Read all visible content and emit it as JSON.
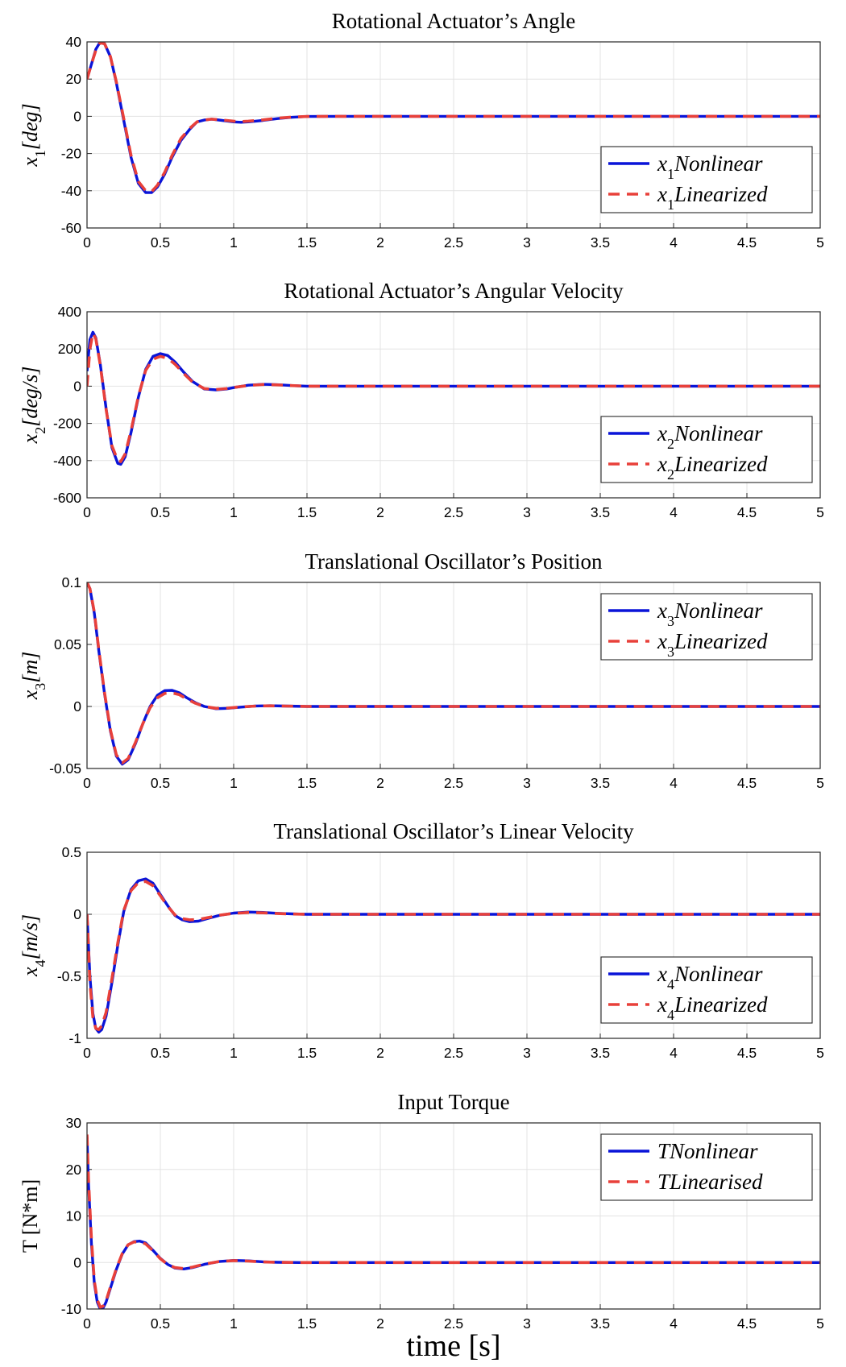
{
  "figure": {
    "xlabel": "time [s]",
    "line_colors": {
      "nonlinear": "#0a14d8",
      "linearized": "#e8403a"
    },
    "background": "#ffffff"
  },
  "chart_data": [
    {
      "type": "line",
      "title": "Rotational Actuator’s Angle",
      "ylabel": {
        "var": "x",
        "sub": "1",
        "unit": "[deg]"
      },
      "xlim": [
        0,
        5
      ],
      "ylim": [
        -60,
        40
      ],
      "xticks": [
        0,
        0.5,
        1,
        1.5,
        2,
        2.5,
        3,
        3.5,
        4,
        4.5,
        5
      ],
      "xtick_labels": [
        "0",
        "0.5",
        "1",
        "1.5",
        "2",
        "2.5",
        "3",
        "3.5",
        "4",
        "4.5",
        "5"
      ],
      "yticks": [
        -60,
        -40,
        -20,
        0,
        20,
        40
      ],
      "ytick_labels": [
        "-60",
        "-40",
        "-20",
        "0",
        "20",
        "40"
      ],
      "grid": true,
      "legend_position": "bottom-right",
      "series": [
        {
          "name": "x1Nonlinear",
          "label_main": "x",
          "label_sub": "1",
          "label_rest": "Nonlinear",
          "style": "solid",
          "x": [
            0,
            0.03,
            0.06,
            0.09,
            0.12,
            0.16,
            0.2,
            0.25,
            0.3,
            0.35,
            0.4,
            0.44,
            0.48,
            0.53,
            0.58,
            0.64,
            0.7,
            0.75,
            0.8,
            0.85,
            0.9,
            0.95,
            1.0,
            1.05,
            1.1,
            1.2,
            1.3,
            1.4,
            1.5,
            1.7,
            2.0,
            5.0
          ],
          "y": [
            20,
            28,
            36,
            40,
            39,
            32,
            18,
            -2,
            -22,
            -36,
            -41,
            -41,
            -38,
            -31,
            -22,
            -13,
            -7,
            -3,
            -2,
            -1.5,
            -2,
            -2.5,
            -3,
            -3.2,
            -3,
            -2.2,
            -1.2,
            -0.5,
            -0.1,
            0,
            0,
            0
          ]
        },
        {
          "name": "x1Linearized",
          "label_main": "x",
          "label_sub": "1",
          "label_rest": "Linearized",
          "style": "dashed",
          "x": [
            0,
            0.03,
            0.06,
            0.09,
            0.12,
            0.16,
            0.2,
            0.25,
            0.3,
            0.35,
            0.4,
            0.44,
            0.48,
            0.53,
            0.58,
            0.64,
            0.7,
            0.75,
            0.8,
            0.85,
            0.9,
            0.95,
            1.0,
            1.05,
            1.1,
            1.2,
            1.3,
            1.4,
            1.5,
            1.7,
            2.0,
            5.0
          ],
          "y": [
            20,
            28,
            35.5,
            39.5,
            39,
            32,
            18.5,
            -1,
            -21,
            -35,
            -40,
            -40.5,
            -37,
            -30,
            -21,
            -12,
            -6.5,
            -3,
            -2,
            -1.5,
            -1.8,
            -2.2,
            -2.6,
            -2.8,
            -2.6,
            -1.9,
            -1,
            -0.4,
            -0.1,
            0,
            0,
            0
          ]
        }
      ]
    },
    {
      "type": "line",
      "title": "Rotational Actuator’s Angular Velocity",
      "ylabel": {
        "var": "x",
        "sub": "2",
        "unit": "[deg/s]"
      },
      "xlim": [
        0,
        5
      ],
      "ylim": [
        -600,
        400
      ],
      "xticks": [
        0,
        0.5,
        1,
        1.5,
        2,
        2.5,
        3,
        3.5,
        4,
        4.5,
        5
      ],
      "xtick_labels": [
        "0",
        "0.5",
        "1",
        "1.5",
        "2",
        "2.5",
        "3",
        "3.5",
        "4",
        "4.5",
        "5"
      ],
      "yticks": [
        -600,
        -400,
        -200,
        0,
        200,
        400
      ],
      "ytick_labels": [
        "-600",
        "-400",
        "-200",
        "0",
        "200",
        "400"
      ],
      "grid": true,
      "legend_position": "bottom-right",
      "series": [
        {
          "name": "x2Nonlinear",
          "label_main": "x",
          "label_sub": "2",
          "label_rest": "Nonlinear",
          "style": "solid",
          "x": [
            0,
            0.02,
            0.04,
            0.06,
            0.09,
            0.13,
            0.17,
            0.21,
            0.23,
            0.26,
            0.3,
            0.35,
            0.4,
            0.45,
            0.5,
            0.55,
            0.6,
            0.66,
            0.72,
            0.8,
            0.88,
            0.95,
            1.0,
            1.1,
            1.2,
            1.3,
            1.4,
            1.5,
            1.7,
            5.0
          ],
          "y": [
            80,
            250,
            290,
            260,
            120,
            -120,
            -330,
            -415,
            -420,
            -380,
            -250,
            -60,
            90,
            160,
            175,
            165,
            130,
            75,
            25,
            -15,
            -20,
            -15,
            -8,
            5,
            10,
            8,
            3,
            0,
            0,
            0
          ]
        },
        {
          "name": "x2Linearized",
          "label_main": "x",
          "label_sub": "2",
          "label_rest": "Linearized",
          "style": "dashed",
          "x": [
            0,
            0.02,
            0.04,
            0.06,
            0.09,
            0.13,
            0.17,
            0.21,
            0.23,
            0.26,
            0.3,
            0.35,
            0.4,
            0.45,
            0.5,
            0.55,
            0.6,
            0.66,
            0.72,
            0.8,
            0.88,
            0.95,
            1.0,
            1.1,
            1.2,
            1.3,
            1.4,
            1.5,
            1.7,
            5.0
          ],
          "y": [
            0,
            200,
            285,
            255,
            115,
            -125,
            -320,
            -400,
            -405,
            -365,
            -240,
            -55,
            85,
            145,
            160,
            150,
            118,
            68,
            22,
            -13,
            -18,
            -13,
            -7,
            4,
            9,
            7,
            3,
            0,
            0,
            0
          ]
        }
      ]
    },
    {
      "type": "line",
      "title": "Translational Oscillator’s Position",
      "ylabel": {
        "var": "x",
        "sub": "3",
        "unit": "[m]"
      },
      "xlim": [
        0,
        5
      ],
      "ylim": [
        -0.05,
        0.1
      ],
      "xticks": [
        0,
        0.5,
        1,
        1.5,
        2,
        2.5,
        3,
        3.5,
        4,
        4.5,
        5
      ],
      "xtick_labels": [
        "0",
        "0.5",
        "1",
        "1.5",
        "2",
        "2.5",
        "3",
        "3.5",
        "4",
        "4.5",
        "5"
      ],
      "yticks": [
        -0.05,
        0,
        0.05,
        0.1
      ],
      "ytick_labels": [
        "-0.05",
        "0",
        "0.05",
        "0.1"
      ],
      "grid": true,
      "legend_position": "top-right",
      "series": [
        {
          "name": "x3Nonlinear",
          "label_main": "x",
          "label_sub": "3",
          "label_rest": "Nonlinear",
          "style": "solid",
          "x": [
            0,
            0.02,
            0.05,
            0.08,
            0.12,
            0.16,
            0.2,
            0.24,
            0.28,
            0.33,
            0.38,
            0.43,
            0.48,
            0.53,
            0.58,
            0.63,
            0.68,
            0.74,
            0.8,
            0.88,
            0.96,
            1.05,
            1.15,
            1.25,
            1.35,
            1.5,
            1.7,
            5.0
          ],
          "y": [
            0.1,
            0.095,
            0.075,
            0.045,
            0.01,
            -0.02,
            -0.04,
            -0.0465,
            -0.043,
            -0.03,
            -0.014,
            0.0,
            0.009,
            0.0128,
            0.013,
            0.011,
            0.007,
            0.003,
            0.0,
            -0.0018,
            -0.0015,
            -0.0005,
            0.0004,
            0.0006,
            0.0003,
            0.0,
            0.0,
            0.0
          ]
        },
        {
          "name": "x3Linearized",
          "label_main": "x",
          "label_sub": "3",
          "label_rest": "Linearized",
          "style": "dashed",
          "x": [
            0,
            0.02,
            0.05,
            0.08,
            0.12,
            0.16,
            0.2,
            0.24,
            0.28,
            0.33,
            0.38,
            0.43,
            0.48,
            0.53,
            0.58,
            0.63,
            0.68,
            0.74,
            0.8,
            0.88,
            0.96,
            1.05,
            1.15,
            1.25,
            1.35,
            1.5,
            1.7,
            5.0
          ],
          "y": [
            0.1,
            0.095,
            0.076,
            0.046,
            0.011,
            -0.019,
            -0.039,
            -0.0455,
            -0.042,
            -0.029,
            -0.014,
            -0.001,
            0.007,
            0.0105,
            0.011,
            0.0095,
            0.006,
            0.0025,
            0.0,
            -0.0015,
            -0.0013,
            -0.0004,
            0.0003,
            0.0005,
            0.0003,
            0.0,
            0.0,
            0.0
          ]
        }
      ]
    },
    {
      "type": "line",
      "title": "Translational Oscillator’s Linear Velocity",
      "ylabel": {
        "var": "x",
        "sub": "4",
        "unit": "[m/s]"
      },
      "xlim": [
        0,
        5
      ],
      "ylim": [
        -1,
        0.5
      ],
      "xticks": [
        0,
        0.5,
        1,
        1.5,
        2,
        2.5,
        3,
        3.5,
        4,
        4.5,
        5
      ],
      "xtick_labels": [
        "0",
        "0.5",
        "1",
        "1.5",
        "2",
        "2.5",
        "3",
        "3.5",
        "4",
        "4.5",
        "5"
      ],
      "yticks": [
        -1,
        -0.5,
        0,
        0.5
      ],
      "ytick_labels": [
        "-1",
        "-0.5",
        "0",
        "0.5"
      ],
      "grid": true,
      "legend_position": "bottom-right",
      "series": [
        {
          "name": "x4Nonlinear",
          "label_main": "x",
          "label_sub": "4",
          "label_rest": "Nonlinear",
          "style": "solid",
          "x": [
            0,
            0.02,
            0.04,
            0.06,
            0.08,
            0.1,
            0.13,
            0.17,
            0.21,
            0.25,
            0.3,
            0.35,
            0.4,
            0.45,
            0.5,
            0.55,
            0.6,
            0.65,
            0.7,
            0.76,
            0.82,
            0.9,
            1.0,
            1.1,
            1.2,
            1.3,
            1.4,
            1.5,
            5.0
          ],
          "y": [
            0,
            -0.5,
            -0.8,
            -0.92,
            -0.95,
            -0.93,
            -0.82,
            -0.55,
            -0.25,
            0.02,
            0.2,
            0.27,
            0.285,
            0.25,
            0.16,
            0.07,
            -0.01,
            -0.045,
            -0.06,
            -0.055,
            -0.035,
            -0.01,
            0.01,
            0.018,
            0.015,
            0.008,
            0.003,
            0.0,
            0.0
          ]
        },
        {
          "name": "x4Linearized",
          "label_main": "x",
          "label_sub": "4",
          "label_rest": "Linearized",
          "style": "dashed",
          "x": [
            0,
            0.02,
            0.04,
            0.06,
            0.08,
            0.1,
            0.13,
            0.17,
            0.21,
            0.25,
            0.3,
            0.35,
            0.4,
            0.45,
            0.5,
            0.55,
            0.6,
            0.65,
            0.7,
            0.76,
            0.82,
            0.9,
            1.0,
            1.1,
            1.2,
            1.3,
            1.4,
            1.5,
            5.0
          ],
          "y": [
            0,
            -0.55,
            -0.83,
            -0.92,
            -0.93,
            -0.9,
            -0.79,
            -0.52,
            -0.23,
            0.03,
            0.19,
            0.255,
            0.265,
            0.23,
            0.15,
            0.065,
            -0.005,
            -0.035,
            -0.045,
            -0.042,
            -0.028,
            -0.008,
            0.008,
            0.014,
            0.012,
            0.006,
            0.002,
            0.0,
            0.0
          ]
        }
      ]
    },
    {
      "type": "line",
      "title": "Input Torque",
      "ylabel": {
        "var": "",
        "sub": "",
        "unit": "T [N*m]"
      },
      "xlim": [
        0,
        5
      ],
      "ylim": [
        -10,
        30
      ],
      "xticks": [
        0,
        0.5,
        1,
        1.5,
        2,
        2.5,
        3,
        3.5,
        4,
        4.5,
        5
      ],
      "xtick_labels": [
        "0",
        "0.5",
        "1",
        "1.5",
        "2",
        "2.5",
        "3",
        "3.5",
        "4",
        "4.5",
        "5"
      ],
      "yticks": [
        -10,
        0,
        10,
        20,
        30
      ],
      "ytick_labels": [
        "-10",
        "0",
        "10",
        "20",
        "30"
      ],
      "grid": true,
      "legend_position": "top-right",
      "series": [
        {
          "name": "TNonlinear",
          "label_main": "T",
          "label_sub": "",
          "label_rest": "Nonlinear",
          "style": "solid",
          "x": [
            0,
            0.01,
            0.03,
            0.05,
            0.07,
            0.09,
            0.11,
            0.13,
            0.16,
            0.2,
            0.24,
            0.28,
            0.32,
            0.36,
            0.4,
            0.45,
            0.5,
            0.55,
            0.6,
            0.66,
            0.72,
            0.8,
            0.9,
            1.0,
            1.1,
            1.2,
            1.3,
            1.45,
            5.0
          ],
          "y": [
            27,
            17,
            4,
            -4.5,
            -8.5,
            -10,
            -9.8,
            -8.5,
            -5.5,
            -1.5,
            1.8,
            3.8,
            4.5,
            4.6,
            4.2,
            2.6,
            0.9,
            -0.4,
            -1.2,
            -1.4,
            -1.1,
            -0.4,
            0.2,
            0.45,
            0.35,
            0.15,
            0.05,
            0.0,
            0.0
          ]
        },
        {
          "name": "TLinearised",
          "label_main": "T",
          "label_sub": "",
          "label_rest": "Linearised",
          "style": "dashed",
          "x": [
            0,
            0.01,
            0.03,
            0.05,
            0.07,
            0.09,
            0.11,
            0.13,
            0.16,
            0.2,
            0.24,
            0.28,
            0.32,
            0.36,
            0.4,
            0.45,
            0.5,
            0.55,
            0.6,
            0.66,
            0.72,
            0.8,
            0.9,
            1.0,
            1.1,
            1.2,
            1.3,
            1.45,
            5.0
          ],
          "y": [
            27.5,
            18,
            5,
            -4,
            -8,
            -9.6,
            -9.4,
            -8.2,
            -5.2,
            -1.3,
            1.9,
            3.8,
            4.4,
            4.4,
            4.0,
            2.5,
            0.8,
            -0.4,
            -1.1,
            -1.3,
            -1.0,
            -0.35,
            0.2,
            0.4,
            0.3,
            0.12,
            0.04,
            0.0,
            0.0
          ]
        }
      ]
    }
  ]
}
